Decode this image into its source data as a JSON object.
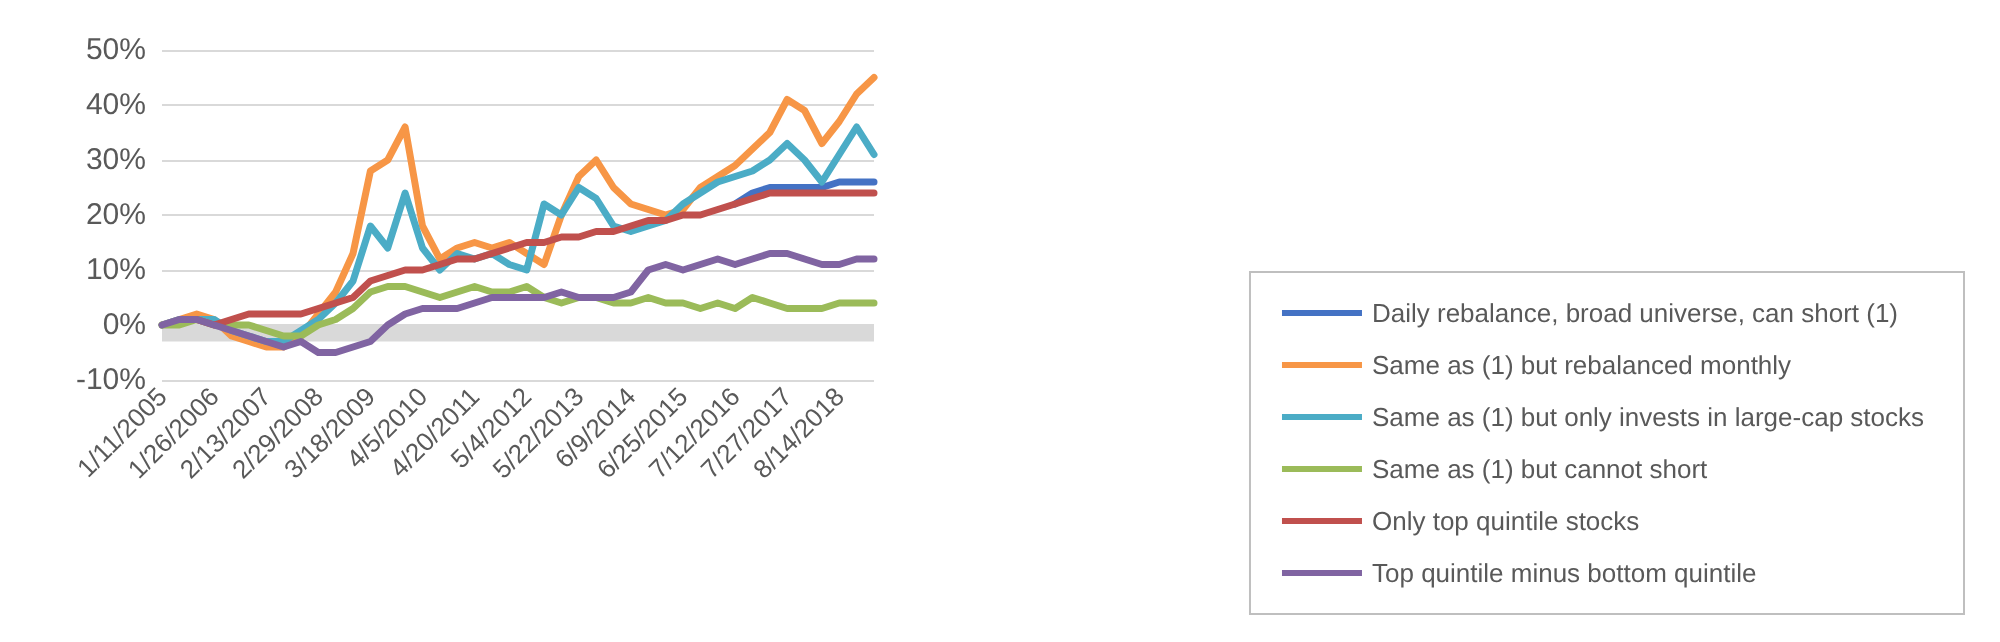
{
  "chart_data": {
    "type": "line",
    "categories": [
      "1/11/2005",
      null,
      null,
      "1/26/2006",
      null,
      null,
      "2/13/2007",
      null,
      null,
      "2/29/2008",
      null,
      null,
      "3/18/2009",
      null,
      null,
      "4/5/2010",
      null,
      null,
      "4/20/2011",
      null,
      null,
      "5/4/2012",
      null,
      null,
      "5/22/2013",
      null,
      null,
      "6/9/2014",
      null,
      null,
      "6/25/2015",
      null,
      null,
      "7/12/2016",
      null,
      null,
      "7/27/2017",
      null,
      null,
      "8/14/2018",
      null,
      null
    ],
    "series": [
      {
        "name": "Daily rebalance, broad universe, can short (1)",
        "color": "#4472c4",
        "values": [
          null,
          null,
          null,
          null,
          null,
          null,
          null,
          null,
          null,
          null,
          null,
          null,
          null,
          null,
          null,
          null,
          null,
          null,
          null,
          null,
          null,
          null,
          null,
          null,
          null,
          null,
          null,
          null,
          null,
          null,
          null,
          null,
          null,
          22,
          24,
          25,
          25,
          25,
          25,
          26,
          26,
          26
        ]
      },
      {
        "name": "Same as (1) but rebalanced monthly",
        "color": "#f79646",
        "values": [
          0,
          1,
          2,
          1,
          -2,
          -3,
          -4,
          -4,
          -2,
          2,
          6,
          13,
          28,
          30,
          36,
          18,
          12,
          14,
          15,
          14,
          15,
          13,
          11,
          20,
          27,
          30,
          25,
          22,
          21,
          20,
          21,
          25,
          27,
          29,
          32,
          35,
          41,
          39,
          33,
          37,
          42,
          45
        ]
      },
      {
        "name": "Same as (1) but only invests in large-cap stocks",
        "color": "#4bacc6",
        "values": [
          0,
          1,
          1,
          1,
          -1,
          -2,
          -3,
          -3,
          -1,
          1,
          4,
          8,
          18,
          14,
          24,
          14,
          10,
          13,
          12,
          13,
          11,
          10,
          22,
          20,
          25,
          23,
          18,
          17,
          18,
          19,
          22,
          24,
          26,
          27,
          28,
          30,
          33,
          30,
          26,
          31,
          36,
          31
        ]
      },
      {
        "name": "Same as (1) but cannot short",
        "color": "#9bbb59",
        "values": [
          0,
          0,
          1,
          0,
          0,
          0,
          -1,
          -2,
          -2,
          0,
          1,
          3,
          6,
          7,
          7,
          6,
          5,
          6,
          7,
          6,
          6,
          7,
          5,
          4,
          5,
          5,
          4,
          4,
          5,
          4,
          4,
          3,
          4,
          3,
          5,
          4,
          3,
          3,
          3,
          4,
          4,
          4
        ]
      },
      {
        "name": "Only top quintile stocks",
        "color": "#c0504d",
        "values": [
          null,
          null,
          1,
          0,
          1,
          2,
          2,
          2,
          2,
          3,
          4,
          5,
          8,
          9,
          10,
          10,
          11,
          12,
          12,
          13,
          14,
          15,
          15,
          16,
          16,
          17,
          17,
          18,
          19,
          19,
          20,
          20,
          21,
          22,
          23,
          24,
          24,
          24,
          24,
          24,
          24,
          24
        ]
      },
      {
        "name": "Top quintile minus bottom quintile",
        "color": "#8064a2",
        "values": [
          0,
          1,
          1,
          0,
          -1,
          -2,
          -3,
          -4,
          -3,
          -5,
          -5,
          -4,
          -3,
          0,
          2,
          3,
          3,
          3,
          4,
          5,
          5,
          5,
          5,
          6,
          5,
          5,
          5,
          6,
          10,
          11,
          10,
          11,
          12,
          11,
          12,
          13,
          13,
          12,
          11,
          11,
          12,
          12
        ]
      }
    ],
    "ylim": [
      -10,
      50
    ],
    "yticks": [
      {
        "value": -10,
        "label": "-10%"
      },
      {
        "value": 0,
        "label": "0%"
      },
      {
        "value": 10,
        "label": "10%"
      },
      {
        "value": 20,
        "label": "20%"
      },
      {
        "value": 30,
        "label": "30%"
      },
      {
        "value": 40,
        "label": "40%"
      },
      {
        "value": 50,
        "label": "50%"
      }
    ],
    "bands": [
      {
        "axis": "y",
        "from": -3,
        "to": 0,
        "color": "#d9d9d9"
      }
    ],
    "grid": "y",
    "legend": "right",
    "marker": "none",
    "line_style": "solid"
  }
}
